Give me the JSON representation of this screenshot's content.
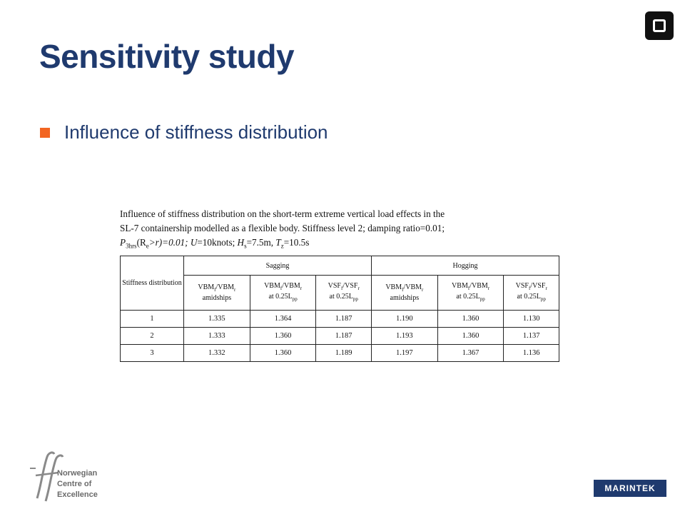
{
  "slide": {
    "title": "Sensitivity study",
    "bullet": "Influence of stiffness distribution"
  },
  "caption": {
    "line1": "Influence of stiffness distribution on the short-term extreme vertical load effects in the",
    "line2": "SL-7 containership modelled as a flexible body. Stiffness level 2; damping ratio=0.01;",
    "line3": {
      "p": "P",
      "p_sub": "3hrs",
      "r_open": "(R",
      "r_sub": "e",
      "r_rest": ">r)=0.01; ",
      "u": "U",
      "u_rest": "=10knots; ",
      "h": "H",
      "h_sub": "s",
      "h_rest": "=7.5m, ",
      "t": "T",
      "t_sub": "z",
      "t_rest": "=10.5s"
    }
  },
  "table": {
    "row_header": "Stiffness distribution",
    "group_sagging": "Sagging",
    "group_hogging": "Hogging",
    "col_vbm_amid": {
      "a": "VBM",
      "a_sub": "f",
      "b": "/VBM",
      "b_sub": "r",
      "line2": "amidships"
    },
    "col_vbm_025": {
      "a": "VBM",
      "a_sub": "f",
      "b": "/VBM",
      "b_sub": "r",
      "line2": "at 0.25L",
      "line2_sub": "pp"
    },
    "col_vsf_025": {
      "a": "VSF",
      "a_sub": "f",
      "b": "/VSF",
      "b_sub": "r",
      "line2": "at 0.25L",
      "line2_sub": "pp"
    },
    "rows": [
      [
        "1",
        "1.335",
        "1.364",
        "1.187",
        "1.190",
        "1.360",
        "1.130"
      ],
      [
        "2",
        "1.333",
        "1.360",
        "1.187",
        "1.193",
        "1.360",
        "1.137"
      ],
      [
        "3",
        "1.332",
        "1.360",
        "1.189",
        "1.197",
        "1.367",
        "1.136"
      ]
    ]
  },
  "footer": {
    "noc_lines": [
      "Norwegian",
      "Centre of",
      "Excellence"
    ],
    "marintek": "MARINTEK"
  },
  "colors": {
    "title": "#1f3a6e",
    "bullet": "#f26522",
    "marintek_bg": "#1f3a6e"
  }
}
